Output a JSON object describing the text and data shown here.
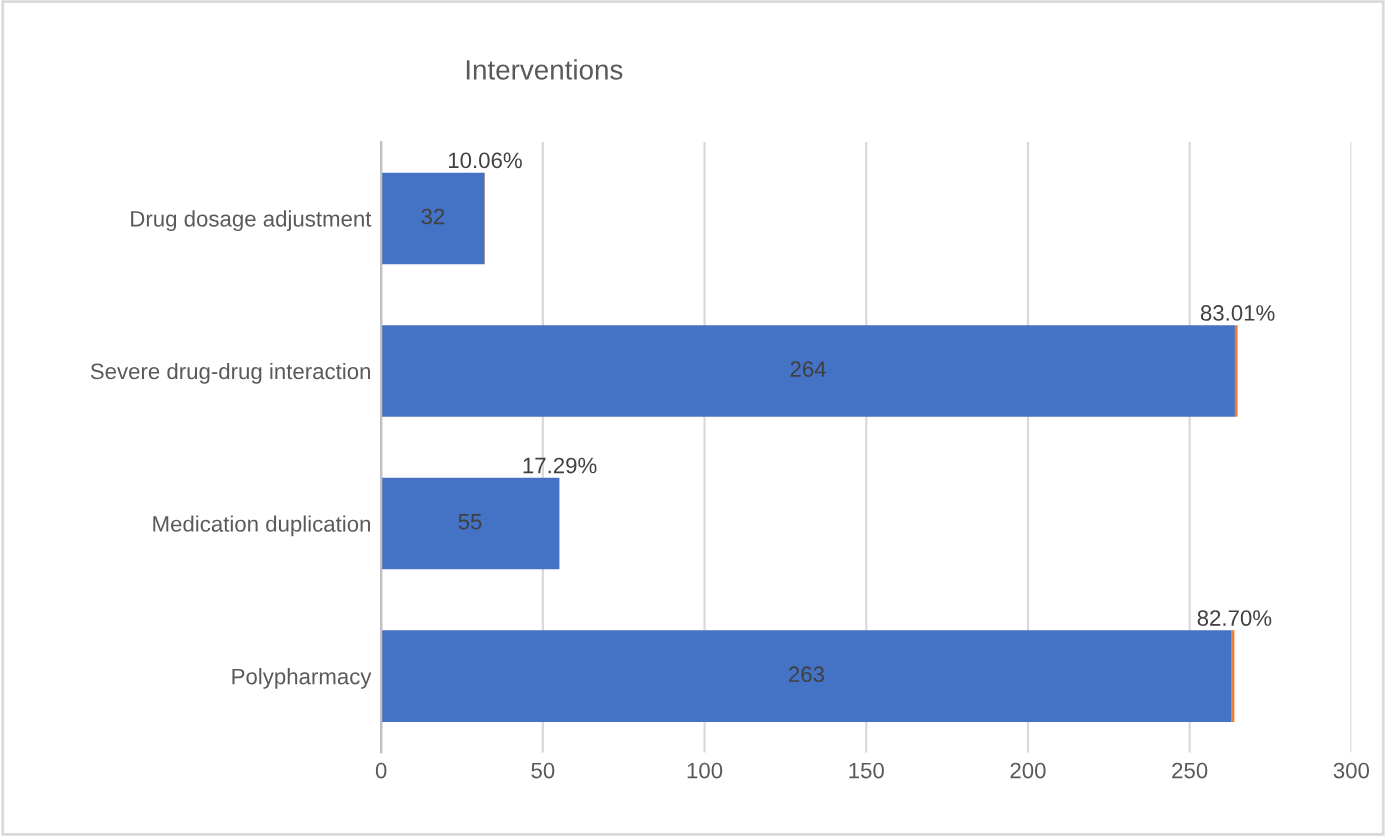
{
  "chart_data": {
    "type": "bar",
    "orientation": "horizontal",
    "stacked": true,
    "title": "Interventions",
    "categories": [
      "Drug dosage adjustment",
      "Severe drug-drug interaction",
      "Medication duplication",
      "Polypharmacy"
    ],
    "series": [
      {
        "color": "#4472c4",
        "values": [
          32,
          264,
          55,
          263
        ],
        "value_labels": [
          "32",
          "264",
          "55",
          "263"
        ]
      },
      {
        "color": "#ed7d31",
        "values": [
          0.1006,
          0.8301,
          0.1729,
          0.827
        ],
        "value_labels": [
          "10.06%",
          "83.01%",
          "17.29%",
          "82.70%"
        ]
      }
    ],
    "xlim": [
      0,
      300
    ],
    "xticks": [
      0,
      50,
      100,
      150,
      200,
      250,
      300
    ],
    "grid": "x",
    "legend": false
  }
}
